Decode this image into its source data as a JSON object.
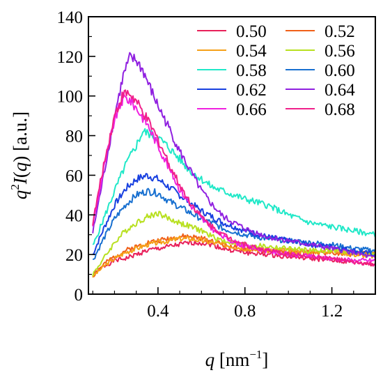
{
  "chart_data": {
    "type": "line",
    "xlabel": "q [nm⁻¹]",
    "ylabel": "q²I(q) [a.u.]",
    "xlim": [
      0.08,
      1.4
    ],
    "ylim": [
      0,
      140
    ],
    "xticks": [
      0.4,
      0.8,
      1.2
    ],
    "xtick_labels": [
      "0.4",
      "0.8",
      "1.2"
    ],
    "yticks": [
      0,
      20,
      40,
      60,
      80,
      100,
      120,
      140
    ],
    "ytick_labels": [
      "0",
      "20",
      "40",
      "60",
      "80",
      "100",
      "120",
      "140"
    ],
    "grid": false,
    "legend_position": "top-right",
    "series": [
      {
        "name": "0.50",
        "color": "#e8205a",
        "values": [
          [
            0.1,
            10
          ],
          [
            0.15,
            14
          ],
          [
            0.2,
            17
          ],
          [
            0.25,
            18
          ],
          [
            0.3,
            20
          ],
          [
            0.35,
            22
          ],
          [
            0.4,
            23
          ],
          [
            0.45,
            24
          ],
          [
            0.5,
            25
          ],
          [
            0.55,
            26
          ],
          [
            0.6,
            26
          ],
          [
            0.65,
            25
          ],
          [
            0.7,
            23
          ],
          [
            0.8,
            21
          ],
          [
            0.9,
            20
          ],
          [
            1.0,
            19
          ],
          [
            1.1,
            18
          ],
          [
            1.2,
            17
          ],
          [
            1.3,
            16
          ],
          [
            1.4,
            15
          ]
        ]
      },
      {
        "name": "0.52",
        "color": "#f06018",
        "values": [
          [
            0.1,
            9
          ],
          [
            0.15,
            15
          ],
          [
            0.2,
            19
          ],
          [
            0.25,
            22
          ],
          [
            0.3,
            24
          ],
          [
            0.35,
            26
          ],
          [
            0.4,
            27
          ],
          [
            0.45,
            28
          ],
          [
            0.5,
            29
          ],
          [
            0.55,
            29
          ],
          [
            0.6,
            28
          ],
          [
            0.65,
            27
          ],
          [
            0.7,
            25
          ],
          [
            0.8,
            23
          ],
          [
            0.9,
            22
          ],
          [
            1.0,
            21
          ],
          [
            1.1,
            21
          ],
          [
            1.2,
            21
          ],
          [
            1.3,
            20
          ],
          [
            1.4,
            22
          ]
        ]
      },
      {
        "name": "0.54",
        "color": "#f5a018",
        "values": [
          [
            0.1,
            9
          ],
          [
            0.15,
            14
          ],
          [
            0.2,
            18
          ],
          [
            0.25,
            21
          ],
          [
            0.3,
            23
          ],
          [
            0.35,
            25
          ],
          [
            0.4,
            26
          ],
          [
            0.45,
            27
          ],
          [
            0.5,
            28
          ],
          [
            0.55,
            28
          ],
          [
            0.6,
            27
          ],
          [
            0.65,
            26
          ],
          [
            0.7,
            25
          ],
          [
            0.8,
            23
          ],
          [
            0.9,
            22
          ],
          [
            1.0,
            22
          ],
          [
            1.1,
            21
          ],
          [
            1.2,
            22
          ],
          [
            1.3,
            20
          ],
          [
            1.4,
            19
          ]
        ]
      },
      {
        "name": "0.56",
        "color": "#b8e020",
        "values": [
          [
            0.1,
            10
          ],
          [
            0.15,
            18
          ],
          [
            0.2,
            26
          ],
          [
            0.25,
            32
          ],
          [
            0.3,
            36
          ],
          [
            0.35,
            39
          ],
          [
            0.4,
            41
          ],
          [
            0.45,
            38
          ],
          [
            0.5,
            36
          ],
          [
            0.55,
            34
          ],
          [
            0.6,
            32
          ],
          [
            0.65,
            29
          ],
          [
            0.7,
            27
          ],
          [
            0.8,
            25
          ],
          [
            0.9,
            24
          ],
          [
            1.0,
            23
          ],
          [
            1.1,
            22
          ],
          [
            1.2,
            22
          ],
          [
            1.3,
            21
          ],
          [
            1.4,
            20
          ]
        ]
      },
      {
        "name": "0.58",
        "color": "#20e8c8",
        "values": [
          [
            0.1,
            24
          ],
          [
            0.15,
            38
          ],
          [
            0.2,
            52
          ],
          [
            0.25,
            65
          ],
          [
            0.3,
            75
          ],
          [
            0.33,
            82
          ],
          [
            0.36,
            81
          ],
          [
            0.4,
            79
          ],
          [
            0.45,
            74
          ],
          [
            0.5,
            68
          ],
          [
            0.55,
            62
          ],
          [
            0.6,
            58
          ],
          [
            0.65,
            54
          ],
          [
            0.7,
            52
          ],
          [
            0.8,
            48
          ],
          [
            0.9,
            45
          ],
          [
            1.0,
            40
          ],
          [
            1.1,
            36
          ],
          [
            1.2,
            34
          ],
          [
            1.3,
            32
          ],
          [
            1.4,
            30
          ]
        ]
      },
      {
        "name": "0.60",
        "color": "#1870d0",
        "values": [
          [
            0.1,
            17
          ],
          [
            0.15,
            28
          ],
          [
            0.2,
            38
          ],
          [
            0.25,
            45
          ],
          [
            0.3,
            50
          ],
          [
            0.35,
            52
          ],
          [
            0.4,
            51
          ],
          [
            0.45,
            47
          ],
          [
            0.5,
            44
          ],
          [
            0.55,
            41
          ],
          [
            0.6,
            38
          ],
          [
            0.65,
            36
          ],
          [
            0.7,
            33
          ],
          [
            0.8,
            30
          ],
          [
            0.9,
            28
          ],
          [
            1.0,
            27
          ],
          [
            1.1,
            26
          ],
          [
            1.2,
            25
          ],
          [
            1.3,
            23
          ],
          [
            1.4,
            22
          ]
        ]
      },
      {
        "name": "0.62",
        "color": "#1840e0",
        "values": [
          [
            0.1,
            20
          ],
          [
            0.15,
            33
          ],
          [
            0.2,
            45
          ],
          [
            0.25,
            53
          ],
          [
            0.3,
            58
          ],
          [
            0.35,
            60
          ],
          [
            0.4,
            58
          ],
          [
            0.45,
            54
          ],
          [
            0.5,
            50
          ],
          [
            0.55,
            46
          ],
          [
            0.6,
            42
          ],
          [
            0.65,
            39
          ],
          [
            0.7,
            36
          ],
          [
            0.8,
            32
          ],
          [
            0.9,
            29
          ],
          [
            1.0,
            27
          ],
          [
            1.1,
            25
          ],
          [
            1.2,
            24
          ],
          [
            1.3,
            22
          ],
          [
            1.4,
            20
          ]
        ]
      },
      {
        "name": "0.64",
        "color": "#9020e0",
        "values": [
          [
            0.1,
            31
          ],
          [
            0.15,
            60
          ],
          [
            0.2,
            90
          ],
          [
            0.24,
            110
          ],
          [
            0.27,
            119
          ],
          [
            0.3,
            118
          ],
          [
            0.33,
            113
          ],
          [
            0.36,
            105
          ],
          [
            0.4,
            95
          ],
          [
            0.45,
            84
          ],
          [
            0.5,
            72
          ],
          [
            0.55,
            62
          ],
          [
            0.6,
            52
          ],
          [
            0.65,
            45
          ],
          [
            0.7,
            39
          ],
          [
            0.8,
            33
          ],
          [
            0.9,
            29
          ],
          [
            1.0,
            27
          ],
          [
            1.1,
            25
          ],
          [
            1.2,
            23
          ],
          [
            1.3,
            21
          ],
          [
            1.4,
            18
          ]
        ]
      },
      {
        "name": "0.66",
        "color": "#f020e0",
        "values": [
          [
            0.1,
            35
          ],
          [
            0.15,
            63
          ],
          [
            0.2,
            88
          ],
          [
            0.24,
            99
          ],
          [
            0.27,
            98
          ],
          [
            0.3,
            94
          ],
          [
            0.35,
            86
          ],
          [
            0.4,
            75
          ],
          [
            0.45,
            64
          ],
          [
            0.5,
            53
          ],
          [
            0.55,
            45
          ],
          [
            0.6,
            38
          ],
          [
            0.65,
            33
          ],
          [
            0.7,
            29
          ],
          [
            0.8,
            24
          ],
          [
            0.9,
            22
          ],
          [
            1.0,
            20
          ],
          [
            1.1,
            19
          ],
          [
            1.2,
            18
          ],
          [
            1.3,
            17
          ],
          [
            1.4,
            17
          ]
        ]
      },
      {
        "name": "0.68",
        "color": "#f0208a",
        "values": [
          [
            0.1,
            36
          ],
          [
            0.15,
            65
          ],
          [
            0.2,
            90
          ],
          [
            0.24,
            101
          ],
          [
            0.27,
            101
          ],
          [
            0.3,
            97
          ],
          [
            0.35,
            88
          ],
          [
            0.4,
            78
          ],
          [
            0.45,
            66
          ],
          [
            0.5,
            55
          ],
          [
            0.55,
            46
          ],
          [
            0.6,
            39
          ],
          [
            0.65,
            34
          ],
          [
            0.7,
            30
          ],
          [
            0.8,
            25
          ],
          [
            0.9,
            22
          ],
          [
            1.0,
            20
          ],
          [
            1.1,
            19
          ],
          [
            1.2,
            18
          ],
          [
            1.3,
            16
          ],
          [
            1.4,
            15
          ]
        ]
      }
    ]
  }
}
